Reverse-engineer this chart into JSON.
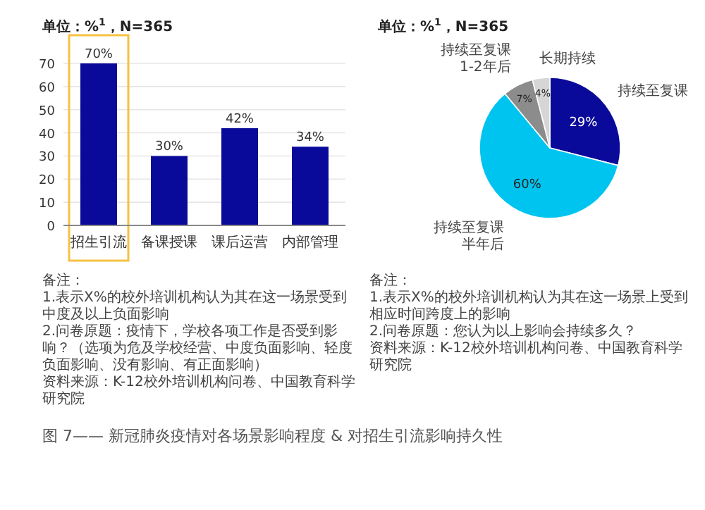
{
  "chart_data": [
    {
      "type": "bar",
      "title": "单位：%$^{1}$，N=365",
      "categories": [
        "招生引流",
        "备课授课",
        "课后运营",
        "内部管理"
      ],
      "values": [
        70,
        30,
        42,
        34
      ],
      "value_labels": [
        "70%",
        "30%",
        "42%",
        "34%"
      ],
      "color": "#0a0a9a",
      "ylim": [
        0,
        70
      ],
      "yticks": [
        0,
        10,
        20,
        30,
        40,
        50,
        60,
        70
      ],
      "grid": "y",
      "annotations": [
        "备注：",
        "1.表示X%的校外培训机构认为其在这一场景受到中度及以上负面影响",
        "2.问卷原题：疫情下，学校各项工作是否受到影响？（选项为危及学校经营、中度负面影响、轻度负面影响、没有影响、有正面影响）",
        "资料来源：K-12校外培训机构问卷、中国教育科学研究院",
        "图 7—— 新冠肺炎疫情对各场景影响程度 & 对招生引流影响持久性"
      ]
    },
    {
      "type": "pie",
      "title": "单位：%$^{1}$，N=365",
      "categories": [
        "持续至复课",
        "持续至复课半年后",
        "持续至复课1-2年后",
        "长期持续"
      ],
      "values": [
        29,
        60,
        7,
        4
      ],
      "value_labels": [
        "29%",
        "60%",
        "7%",
        "4%"
      ],
      "colors": [
        "#0a0a9a",
        "#00c4f0",
        "#8c8c8c",
        "#d6d6d6"
      ],
      "annotations": [
        "备注：",
        "1.表示X%的校外培训机构认为其在这一场景上受到相应时间跨度上的影响",
        "2.问卷原题：您认为以上影响会持续多久？",
        "资料来源：K-12校外培训机构问卷、中国教育科学研究院"
      ]
    }
  ]
}
